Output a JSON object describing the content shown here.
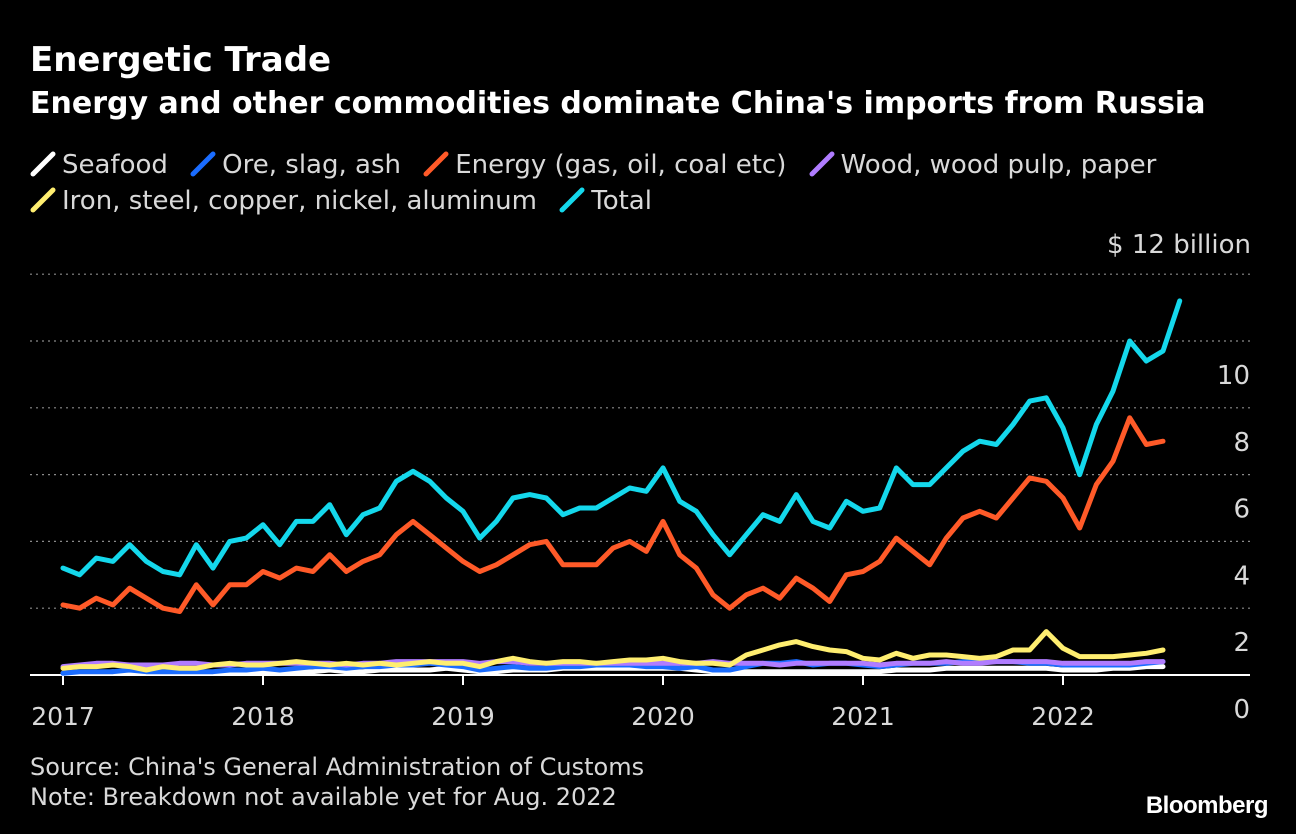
{
  "header": {
    "title": "Energetic Trade",
    "subtitle": "Energy and other commodities dominate China's imports from Russia"
  },
  "legend": [
    {
      "name": "Seafood",
      "color": "#ffffff"
    },
    {
      "name": "Ore, slag, ash",
      "color": "#1a6cff"
    },
    {
      "name": "Energy (gas, oil, coal etc)",
      "color": "#ff5a28"
    },
    {
      "name": "Wood, wood pulp, paper",
      "color": "#b07cff"
    },
    {
      "name": "Iron, steel, copper, nickel, aluminum",
      "color": "#ffee70"
    },
    {
      "name": "Total",
      "color": "#14d8ec"
    }
  ],
  "footer": {
    "source": "Source: China's General Administration of Customs",
    "note": "Note: Breakdown not available yet for Aug. 2022",
    "brand": "Bloomberg"
  },
  "chart_data": {
    "type": "line",
    "title": "Energetic Trade",
    "subtitle": "Energy and other commodities dominate China's imports from Russia",
    "unit_label": "$ 12 billion",
    "y_ticks": [
      "10",
      "8",
      "6",
      "4",
      "2",
      "0"
    ],
    "x_ticks": [
      "2017",
      "2018",
      "2019",
      "2020",
      "2021",
      "2022"
    ],
    "ylim": [
      0,
      12
    ],
    "grid": true,
    "legend_position": "top",
    "x_start": "2017-01",
    "x_unit": "month",
    "series": [
      {
        "name": "Total",
        "color": "#14d8ec",
        "values": [
          3.2,
          3.0,
          3.5,
          3.4,
          3.9,
          3.4,
          3.1,
          3.0,
          3.9,
          3.2,
          4.0,
          4.1,
          4.5,
          3.9,
          4.6,
          4.6,
          5.1,
          4.2,
          4.8,
          5.0,
          5.8,
          6.1,
          5.8,
          5.3,
          4.9,
          4.1,
          4.6,
          5.3,
          5.4,
          5.3,
          4.8,
          5.0,
          5.0,
          5.3,
          5.6,
          5.5,
          6.2,
          5.2,
          4.9,
          4.2,
          3.6,
          4.2,
          4.8,
          4.6,
          5.4,
          4.6,
          4.4,
          5.2,
          4.9,
          5.0,
          6.2,
          5.7,
          5.7,
          6.2,
          6.7,
          7.0,
          6.9,
          7.5,
          8.2,
          8.3,
          7.4,
          6.0,
          7.5,
          8.5,
          10.0,
          9.4,
          9.7,
          11.2
        ]
      },
      {
        "name": "Energy (gas, oil, coal etc)",
        "color": "#ff5a28",
        "values": [
          2.1,
          2.0,
          2.3,
          2.1,
          2.6,
          2.3,
          2.0,
          1.9,
          2.7,
          2.1,
          2.7,
          2.7,
          3.1,
          2.9,
          3.2,
          3.1,
          3.6,
          3.1,
          3.4,
          3.6,
          4.2,
          4.6,
          4.2,
          3.8,
          3.4,
          3.1,
          3.3,
          3.6,
          3.9,
          4.0,
          3.3,
          3.3,
          3.3,
          3.8,
          4.0,
          3.7,
          4.6,
          3.6,
          3.2,
          2.4,
          2.0,
          2.4,
          2.6,
          2.3,
          2.9,
          2.6,
          2.2,
          3.0,
          3.1,
          3.4,
          4.1,
          3.7,
          3.3,
          4.1,
          4.7,
          4.9,
          4.7,
          5.3,
          5.9,
          5.8,
          5.3,
          4.4,
          5.7,
          6.4,
          7.7,
          6.9,
          7.0
        ]
      },
      {
        "name": "Iron, steel, copper, nickel, aluminum",
        "color": "#ffee70",
        "values": [
          0.2,
          0.25,
          0.25,
          0.3,
          0.25,
          0.15,
          0.25,
          0.2,
          0.2,
          0.3,
          0.35,
          0.3,
          0.3,
          0.35,
          0.4,
          0.35,
          0.3,
          0.35,
          0.3,
          0.35,
          0.3,
          0.35,
          0.4,
          0.35,
          0.35,
          0.25,
          0.4,
          0.5,
          0.4,
          0.35,
          0.4,
          0.4,
          0.35,
          0.4,
          0.45,
          0.45,
          0.5,
          0.4,
          0.35,
          0.35,
          0.3,
          0.6,
          0.75,
          0.9,
          1.0,
          0.85,
          0.75,
          0.7,
          0.5,
          0.45,
          0.65,
          0.5,
          0.6,
          0.6,
          0.55,
          0.5,
          0.55,
          0.75,
          0.75,
          1.3,
          0.8,
          0.55,
          0.55,
          0.55,
          0.6,
          0.65,
          0.75
        ]
      },
      {
        "name": "Wood, wood pulp, paper",
        "color": "#b07cff",
        "values": [
          0.25,
          0.3,
          0.35,
          0.35,
          0.3,
          0.3,
          0.3,
          0.35,
          0.35,
          0.3,
          0.3,
          0.35,
          0.35,
          0.35,
          0.35,
          0.35,
          0.35,
          0.3,
          0.35,
          0.35,
          0.4,
          0.4,
          0.4,
          0.4,
          0.4,
          0.35,
          0.4,
          0.4,
          0.35,
          0.35,
          0.35,
          0.35,
          0.35,
          0.35,
          0.35,
          0.35,
          0.35,
          0.35,
          0.35,
          0.4,
          0.35,
          0.35,
          0.35,
          0.3,
          0.35,
          0.35,
          0.35,
          0.35,
          0.35,
          0.3,
          0.35,
          0.35,
          0.35,
          0.4,
          0.35,
          0.35,
          0.4,
          0.4,
          0.4,
          0.4,
          0.35,
          0.35,
          0.35,
          0.35,
          0.35,
          0.4,
          0.4
        ]
      },
      {
        "name": "Ore, slag, ash",
        "color": "#1a6cff",
        "values": [
          0.05,
          0.1,
          0.1,
          0.1,
          0.15,
          0.1,
          0.1,
          0.1,
          0.1,
          0.1,
          0.15,
          0.15,
          0.2,
          0.15,
          0.2,
          0.25,
          0.25,
          0.2,
          0.25,
          0.25,
          0.3,
          0.3,
          0.35,
          0.3,
          0.25,
          0.15,
          0.2,
          0.25,
          0.2,
          0.2,
          0.25,
          0.25,
          0.3,
          0.3,
          0.3,
          0.25,
          0.25,
          0.2,
          0.25,
          0.15,
          0.15,
          0.25,
          0.35,
          0.35,
          0.4,
          0.3,
          0.35,
          0.35,
          0.3,
          0.25,
          0.3,
          0.35,
          0.35,
          0.35,
          0.4,
          0.4,
          0.4,
          0.4,
          0.35,
          0.35,
          0.3,
          0.3,
          0.3,
          0.3,
          0.3,
          0.35,
          0.4
        ]
      },
      {
        "name": "Seafood",
        "color": "#ffffff",
        "values": [
          0.05,
          0.05,
          0.05,
          0.1,
          0.05,
          0.05,
          0.1,
          0.05,
          0.05,
          0.05,
          0.1,
          0.1,
          0.1,
          0.1,
          0.1,
          0.1,
          0.15,
          0.1,
          0.1,
          0.15,
          0.15,
          0.15,
          0.15,
          0.2,
          0.15,
          0.1,
          0.1,
          0.15,
          0.15,
          0.15,
          0.2,
          0.2,
          0.2,
          0.2,
          0.2,
          0.2,
          0.2,
          0.2,
          0.15,
          0.1,
          0.1,
          0.1,
          0.1,
          0.1,
          0.1,
          0.1,
          0.1,
          0.1,
          0.1,
          0.1,
          0.15,
          0.15,
          0.15,
          0.2,
          0.2,
          0.2,
          0.2,
          0.2,
          0.2,
          0.2,
          0.15,
          0.15,
          0.15,
          0.2,
          0.2,
          0.25,
          0.25
        ]
      }
    ]
  }
}
